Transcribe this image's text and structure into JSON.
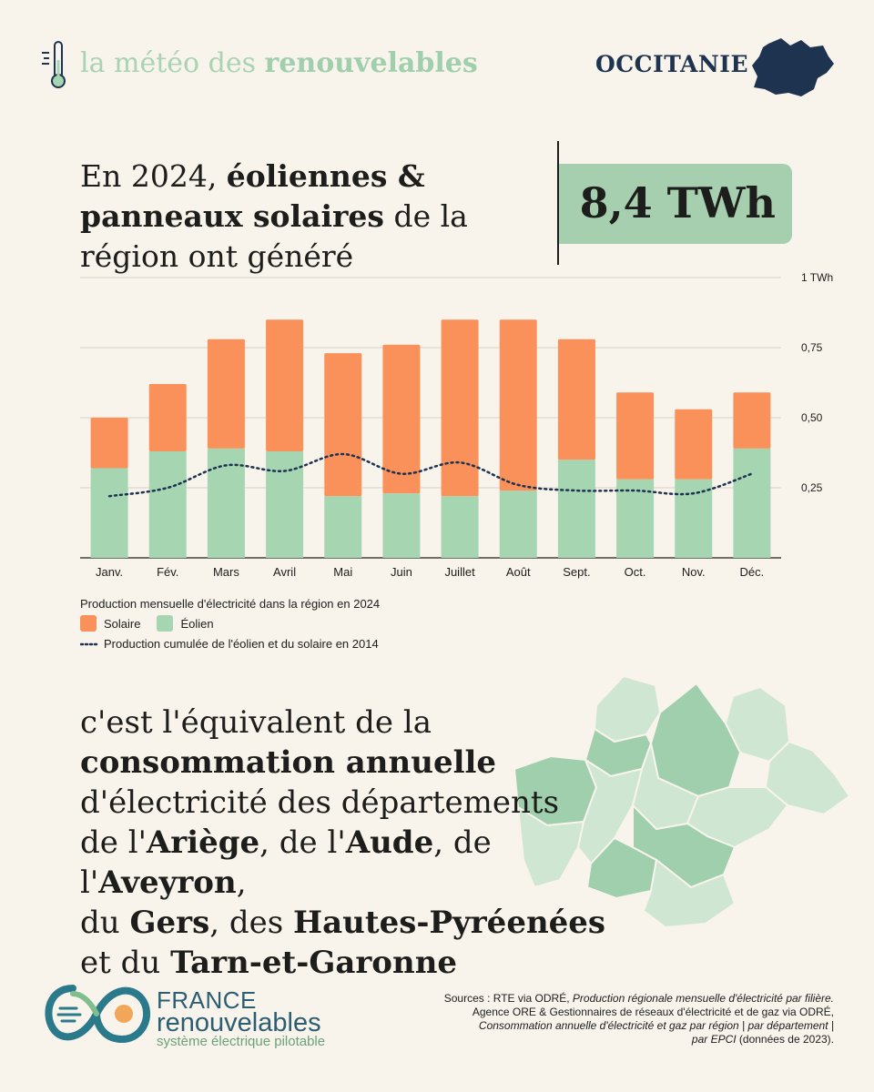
{
  "header": {
    "brand_prefix": "la météo des",
    "brand_emphasis": "renouvelables",
    "region": "OCCITANIE",
    "thermometer_icon": "thermometer-icon",
    "region_map_icon": "occitanie-map-icon"
  },
  "headline": {
    "part1": "En 2024, ",
    "part2": "éoliennes & panneaux solaires",
    "part3": " de la région ont généré",
    "value": "8,4 TWh"
  },
  "chart_data": {
    "type": "bar",
    "stacked": true,
    "categories": [
      "Janv.",
      "Fév.",
      "Mars",
      "Avril",
      "Mai",
      "Juin",
      "Juillet",
      "Août",
      "Sept.",
      "Oct.",
      "Nov.",
      "Déc."
    ],
    "series": [
      {
        "name": "Éolien",
        "color": "#a6d5b1",
        "values": [
          0.32,
          0.38,
          0.39,
          0.38,
          0.22,
          0.23,
          0.22,
          0.24,
          0.35,
          0.28,
          0.28,
          0.39
        ]
      },
      {
        "name": "Solaire",
        "color": "#fa915a",
        "values": [
          0.18,
          0.24,
          0.39,
          0.47,
          0.51,
          0.53,
          0.63,
          0.61,
          0.43,
          0.31,
          0.25,
          0.2
        ]
      }
    ],
    "line": {
      "name": "Production cumulée de l'éolien et du solaire en 2014",
      "color": "#1e3350",
      "values": [
        0.22,
        0.25,
        0.33,
        0.31,
        0.37,
        0.3,
        0.34,
        0.26,
        0.24,
        0.24,
        0.23,
        0.3
      ]
    },
    "yticks": [
      0.25,
      0.5,
      0.75,
      1
    ],
    "ytick_labels": [
      "0,25",
      "0,50",
      "0,75",
      "1 TWh"
    ],
    "ylim": [
      0,
      1
    ],
    "legend_title": "Production mensuelle d'électricité dans la région en 2024",
    "legend": [
      "Solaire",
      "Éolien"
    ],
    "line_label": "Production cumulée de l'éolien et du solaire en 2014"
  },
  "equivalence": {
    "l1": "c'est l'équivalent de la",
    "l2": "consommation annuelle",
    "l3": "d'électricité des départements",
    "l4a": "de l'",
    "l4b": "Ariège",
    "l4c": ", de l'",
    "l4d": "Aude",
    "l4e": ", de l'",
    "l4f": "Aveyron",
    "l4g": ",",
    "l5a": "du ",
    "l5b": "Gers",
    "l5c": ", des ",
    "l5d": "Hautes-Pyréenées",
    "l6a": "et du ",
    "l6b": "Tarn-et-Garonne"
  },
  "footer": {
    "logo_line1": "FRANCE",
    "logo_line2": "renouvelables",
    "logo_line3": "système électrique pilotable",
    "sources_l1a": "Sources : RTE via ODRÉ, ",
    "sources_l1b": "Production régionale mensuelle d'électricité par filière.",
    "sources_l2": "Agence ORE & Gestionnaires de réseaux d'électricité et de gaz via ODRÉ,",
    "sources_l3": "Consommation annuelle d'électricité et gaz par région | par département |",
    "sources_l4a": "par EPCI",
    "sources_l4b": " (données de 2023)."
  },
  "colors": {
    "solar": "#fa915a",
    "wind": "#a6d5b1",
    "navy": "#1e3350",
    "bg": "#f8f3eb"
  }
}
